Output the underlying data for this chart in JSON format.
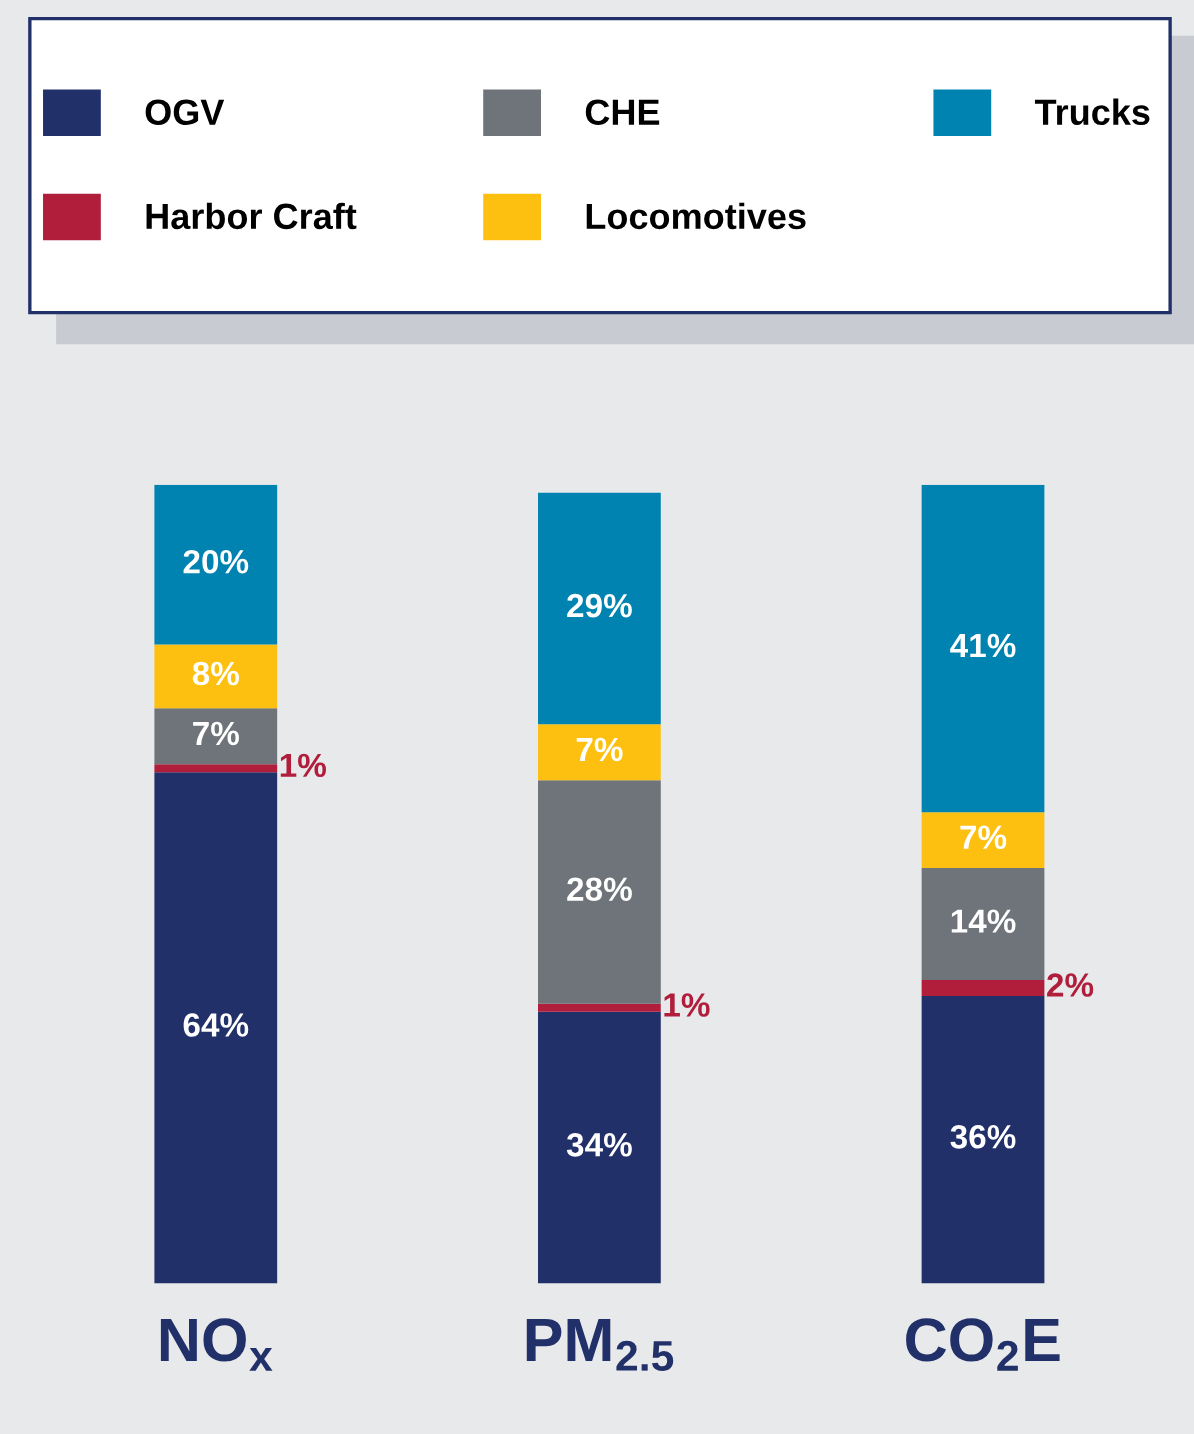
{
  "chart_data": {
    "type": "bar",
    "stacked": true,
    "legend": "top",
    "grid": false,
    "tick_labels": "x",
    "categories": [
      "NO$_{x}$",
      "PM$_{2.5}$",
      "CO$_{2}$E"
    ],
    "series": [
      {
        "name": "OGV",
        "color": "#22306a",
        "values": [
          64,
          34,
          36
        ],
        "value_labels": [
          "64%",
          "34%",
          "36%"
        ]
      },
      {
        "name": "Harbor Craft",
        "color": "#b01e3c",
        "values": [
          1,
          1,
          2
        ],
        "value_labels": [
          "1%",
          "1%",
          "2%"
        ]
      },
      {
        "name": "CHE",
        "color": "#6e7479",
        "values": [
          7,
          28,
          14
        ],
        "value_labels": [
          "7%",
          "28%",
          "14%"
        ]
      },
      {
        "name": "Locomotives",
        "color": "#fdc010",
        "values": [
          8,
          7,
          7
        ],
        "value_labels": [
          "8%",
          "7%",
          "7%"
        ]
      },
      {
        "name": "Trucks",
        "color": "#0083b0",
        "values": [
          20,
          29,
          41
        ],
        "value_labels": [
          "20%",
          "29%",
          "41%"
        ]
      }
    ]
  }
}
